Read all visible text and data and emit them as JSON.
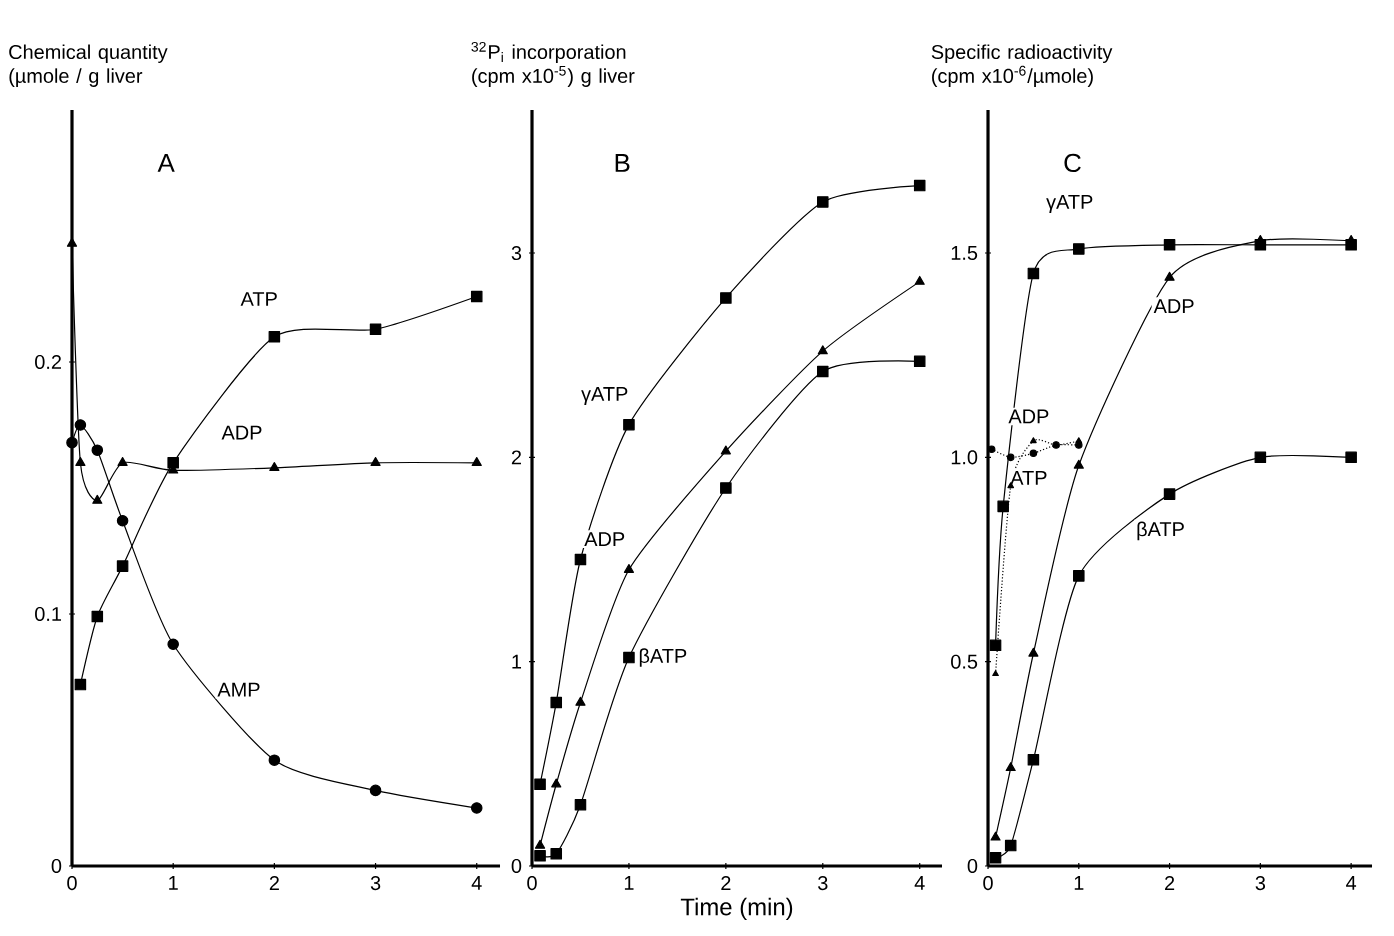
{
  "chart_data": [
    {
      "type": "line",
      "title": "A",
      "ylabel": "Chemical quantity (µmole / g liver",
      "xlim": [
        0,
        4.23
      ],
      "ylim": [
        0,
        0.3
      ],
      "xticks": [
        0,
        1,
        2,
        3,
        4
      ],
      "yticks": [
        0,
        0.1,
        0.2
      ],
      "series": [
        {
          "color": "#000000",
          "marker": "square",
          "line_style": "solid",
          "x": [
            0.083,
            0.25,
            0.5,
            1,
            2,
            3,
            4
          ],
          "values": [
            0.072,
            0.099,
            0.119,
            0.16,
            0.21,
            0.213,
            0.226
          ]
        },
        {
          "color": "#000000",
          "marker": "triangle",
          "line_style": "solid",
          "x": [
            0,
            0.083,
            0.25,
            0.5,
            1,
            2,
            3,
            4
          ],
          "values": [
            0.247,
            0.16,
            0.145,
            0.16,
            0.157,
            0.158,
            0.16,
            0.16
          ]
        },
        {
          "color": "#000000",
          "marker": "circle",
          "line_style": "solid",
          "x": [
            0,
            0.083,
            0.25,
            0.5,
            1,
            2,
            3,
            4
          ],
          "values": [
            0.168,
            0.175,
            0.165,
            0.137,
            0.088,
            0.042,
            0.03,
            0.023
          ]
        }
      ],
      "annotations": [
        {
          "text": "ATP",
          "x": 1.85,
          "y": 0.225
        },
        {
          "text": "ADP",
          "x": 1.68,
          "y": 0.172
        },
        {
          "text": "AMP",
          "x": 1.65,
          "y": 0.07
        }
      ]
    },
    {
      "type": "line",
      "title": "B",
      "ylabel": "$^{32}$P$_{i}$ incorporation (cpm x10$^{-5}$) g liver",
      "xlabel": "Time (min)",
      "xlim": [
        0,
        4.23
      ],
      "ylim": [
        0,
        3.7
      ],
      "xticks": [
        0,
        1,
        2,
        3,
        4
      ],
      "yticks": [
        0,
        1,
        2,
        3
      ],
      "series": [
        {
          "color": "#000000",
          "marker": "square",
          "line_style": "solid",
          "x": [
            0.083,
            0.25,
            0.5,
            1,
            2,
            3,
            4
          ],
          "values": [
            0.4,
            0.8,
            1.5,
            2.16,
            2.78,
            3.25,
            3.33
          ]
        },
        {
          "color": "#000000",
          "marker": "triangle",
          "line_style": "solid",
          "x": [
            0.083,
            0.25,
            0.5,
            1,
            2,
            3,
            4
          ],
          "values": [
            0.1,
            0.4,
            0.8,
            1.45,
            2.03,
            2.52,
            2.86
          ]
        },
        {
          "color": "#000000",
          "marker": "square",
          "line_style": "solid",
          "x": [
            0.083,
            0.25,
            0.5,
            1,
            2,
            3,
            4
          ],
          "values": [
            0.05,
            0.06,
            0.3,
            1.02,
            1.85,
            2.42,
            2.47
          ]
        }
      ],
      "annotations": [
        {
          "text": "γATP",
          "x": 0.75,
          "y": 2.3
        },
        {
          "text": "ADP",
          "x": 0.75,
          "y": 1.6
        },
        {
          "text": "βATP",
          "x": 1.35,
          "y": 1.02
        }
      ]
    },
    {
      "type": "line",
      "title": "C",
      "ylabel": "Specific radioactivity (cpm x10$^{-6}$/µmole)",
      "xlim": [
        0,
        4.23
      ],
      "ylim": [
        0,
        1.85
      ],
      "xticks": [
        0,
        1,
        2,
        3,
        4
      ],
      "yticks": [
        0,
        0.5,
        {
          "value": 1,
          "label": "1.0"
        },
        1.5
      ],
      "series": [
        {
          "color": "#000000",
          "marker": "square",
          "line_style": "solid",
          "x": [
            0.083,
            0.167,
            0.5,
            1,
            2,
            3,
            4
          ],
          "values": [
            0.54,
            0.88,
            1.45,
            1.51,
            1.52,
            1.52,
            1.52
          ]
        },
        {
          "color": "#000000",
          "marker": "triangle",
          "line_style": "solid",
          "x": [
            0.083,
            0.25,
            0.5,
            1,
            2,
            3,
            4
          ],
          "values": [
            0.07,
            0.24,
            0.52,
            0.98,
            1.44,
            1.53,
            1.53
          ]
        },
        {
          "color": "#000000",
          "marker": "square",
          "line_style": "solid",
          "x": [
            0.083,
            0.25,
            0.5,
            1,
            2,
            3,
            4
          ],
          "values": [
            0.02,
            0.05,
            0.26,
            0.71,
            0.91,
            1.0,
            1.0
          ]
        },
        {
          "color": "#000000",
          "marker": "triangle",
          "line_style": "dotted",
          "x": [
            0.083,
            0.25,
            0.5,
            0.75,
            1
          ],
          "values": [
            0.47,
            0.93,
            1.04,
            1.03,
            1.04
          ]
        },
        {
          "color": "#000000",
          "marker": "circle",
          "line_style": "dotted",
          "x": [
            0.04,
            0.25,
            0.5,
            0.75,
            1
          ],
          "values": [
            1.02,
            1.0,
            1.01,
            1.03,
            1.03
          ]
        }
      ],
      "annotations": [
        {
          "text": "γATP",
          "x": 0.9,
          "y": 1.62
        },
        {
          "text": "ADP",
          "x": 2.05,
          "y": 1.37
        },
        {
          "text": "βATP",
          "x": 1.9,
          "y": 0.82
        },
        {
          "text": "ADP",
          "x": 0.45,
          "y": 1.1
        },
        {
          "text": "ATP",
          "x": 0.45,
          "y": 0.95
        }
      ]
    }
  ]
}
